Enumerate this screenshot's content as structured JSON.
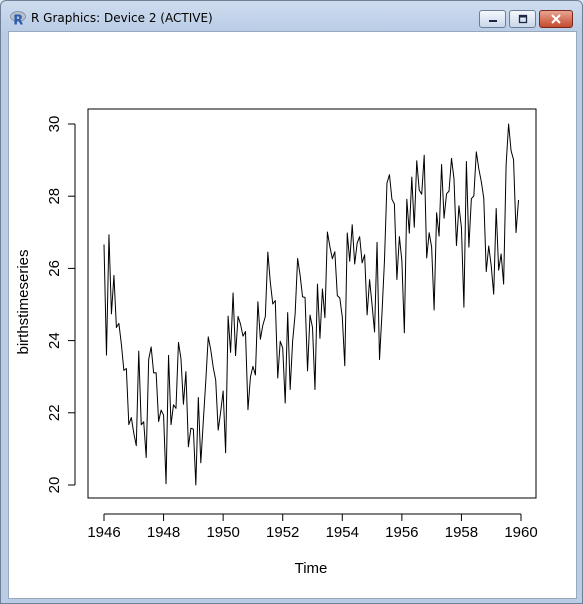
{
  "window": {
    "title": "R Graphics: Device 2 (ACTIVE)",
    "icon": "r-logo-icon",
    "controls": [
      "minimize-icon",
      "maximize-icon",
      "close-icon"
    ]
  },
  "chart_data": {
    "type": "line",
    "title": "",
    "xlabel": "Time",
    "ylabel": "birthstimeseries",
    "xlim": [
      1946,
      1960
    ],
    "ylim": [
      20,
      30
    ],
    "x_ticks": [
      "1946",
      "1948",
      "1950",
      "1952",
      "1954",
      "1956",
      "1958",
      "1960"
    ],
    "y_ticks": [
      "20",
      "22",
      "24",
      "26",
      "28",
      "30"
    ],
    "grid": false,
    "legend": "none",
    "start": 1946.0,
    "frequency": 12,
    "values": [
      26.663,
      23.598,
      26.931,
      24.74,
      25.806,
      24.364,
      24.477,
      23.901,
      23.175,
      23.227,
      21.672,
      21.87,
      21.439,
      21.089,
      23.709,
      21.669,
      21.752,
      20.761,
      23.479,
      23.824,
      23.105,
      23.11,
      21.759,
      22.073,
      21.937,
      20.035,
      23.59,
      21.672,
      22.222,
      22.123,
      23.95,
      23.504,
      22.238,
      23.142,
      21.059,
      21.573,
      21.548,
      20.0,
      22.424,
      20.615,
      21.761,
      22.874,
      24.104,
      23.748,
      23.262,
      22.907,
      21.519,
      22.025,
      22.604,
      20.894,
      24.677,
      23.673,
      25.32,
      23.583,
      24.671,
      24.454,
      24.122,
      24.252,
      22.084,
      22.991,
      23.287,
      23.049,
      25.076,
      24.037,
      24.43,
      24.667,
      26.451,
      25.618,
      25.014,
      25.11,
      22.964,
      23.981,
      23.798,
      22.27,
      24.775,
      22.646,
      23.988,
      24.737,
      26.276,
      25.816,
      25.21,
      25.199,
      23.162,
      24.707,
      24.364,
      22.644,
      25.565,
      24.062,
      25.431,
      24.635,
      27.009,
      26.606,
      26.268,
      26.462,
      25.246,
      25.18,
      24.657,
      23.304,
      26.982,
      26.199,
      27.21,
      26.122,
      26.706,
      26.878,
      26.152,
      26.379,
      24.712,
      25.688,
      24.99,
      24.239,
      26.721,
      23.475,
      24.767,
      26.219,
      28.361,
      28.599,
      27.914,
      27.784,
      25.693,
      26.881,
      26.217,
      24.218,
      27.914,
      26.975,
      28.527,
      27.139,
      28.982,
      28.169,
      28.056,
      29.136,
      26.291,
      26.987,
      26.589,
      24.848,
      27.543,
      26.896,
      28.878,
      27.39,
      28.065,
      28.141,
      29.048,
      28.484,
      26.634,
      27.735,
      27.132,
      24.924,
      28.963,
      26.589,
      27.931,
      28.009,
      29.229,
      28.759,
      28.405,
      27.945,
      25.912,
      26.619,
      26.076,
      25.286,
      27.66,
      25.951,
      26.398,
      25.565,
      28.865,
      30.0,
      29.261,
      29.012,
      26.992,
      27.897
    ]
  }
}
